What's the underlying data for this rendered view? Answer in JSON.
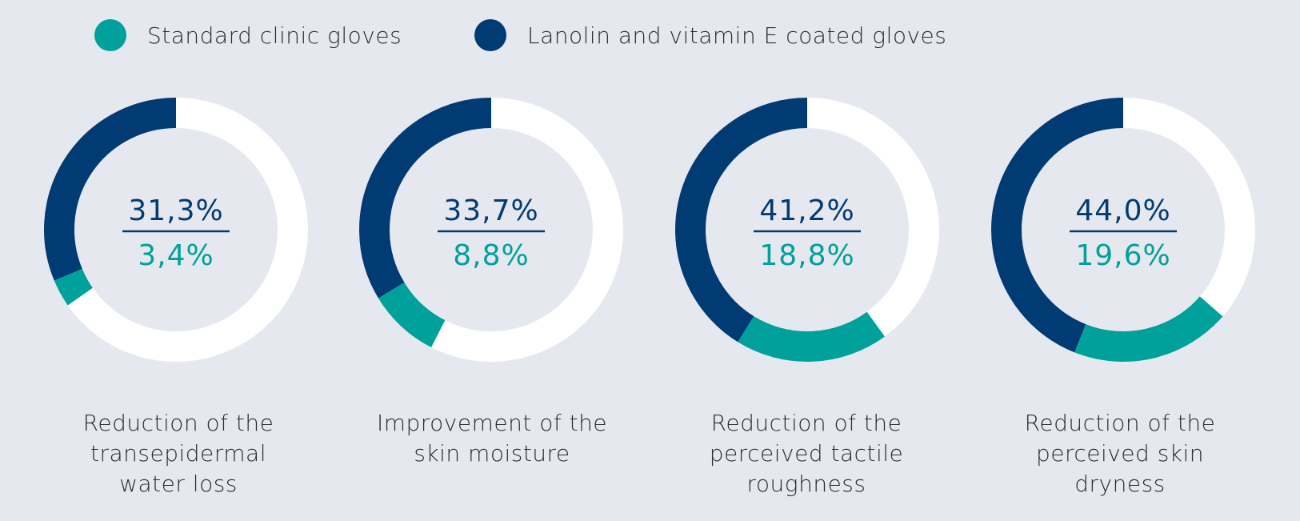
{
  "colors": {
    "background": "#e6e8ef",
    "standard": "#00a19a",
    "coated": "#003b73",
    "ring_base": "#ffffff"
  },
  "legend": [
    {
      "label": "Standard clinic gloves",
      "color": "#00a19a"
    },
    {
      "label": "Lanolin and vitamin E coated gloves",
      "color": "#003b73"
    }
  ],
  "chart_data": {
    "type": "donut",
    "series": [
      {
        "name": "Lanolin and vitamin E coated gloves",
        "color": "#003b73"
      },
      {
        "name": "Standard clinic gloves",
        "color": "#00a19a"
      }
    ],
    "charts": [
      {
        "caption": "Reduction of the\ntransepidermal\nwater loss",
        "coated_value": 31.3,
        "standard_value": 3.4,
        "coated_label": "31,3%",
        "standard_label": "3,4%"
      },
      {
        "caption": "Improvement of the\nskin moisture",
        "coated_value": 33.7,
        "standard_value": 8.8,
        "coated_label": "33,7%",
        "standard_label": "8,8%"
      },
      {
        "caption": "Reduction of the\nperceived tactile\nroughness",
        "coated_value": 41.2,
        "standard_value": 18.8,
        "coated_label": "41,2%",
        "standard_label": "18,8%"
      },
      {
        "caption": "Reduction of the\nperceived skin\ndryness",
        "coated_value": 44.0,
        "standard_value": 19.6,
        "coated_label": "44,0%",
        "standard_label": "19,6%"
      }
    ]
  }
}
